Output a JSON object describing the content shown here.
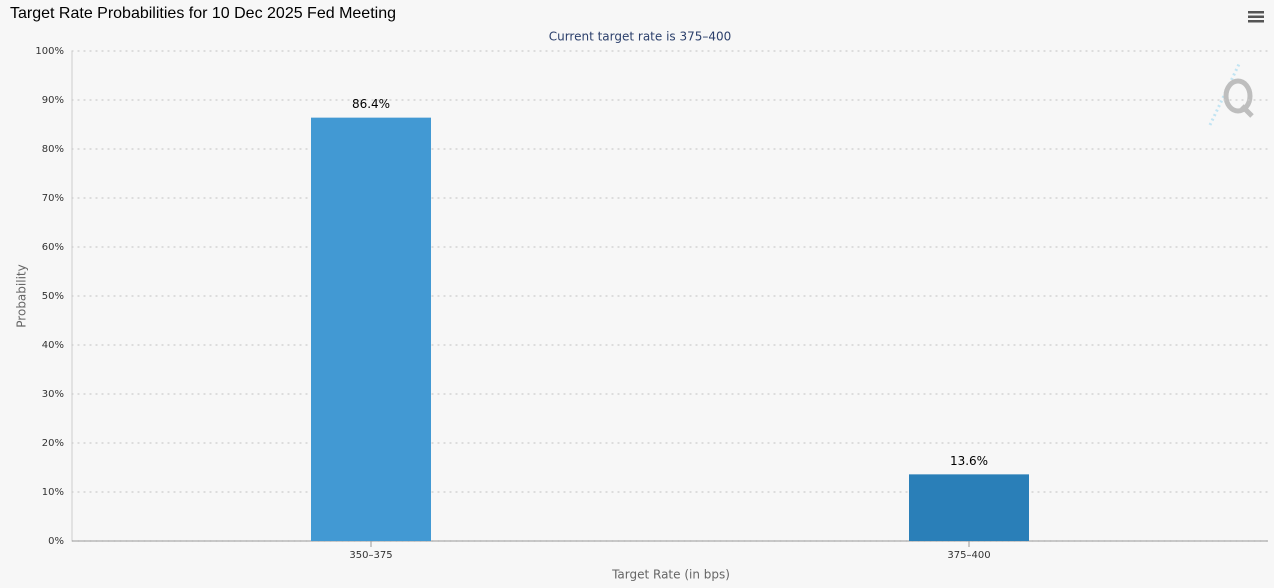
{
  "chart_data": {
    "type": "bar",
    "title": "Target Rate Probabilities for 10 Dec 2025 Fed Meeting",
    "subtitle": "Current target rate is 375–400",
    "x_label": "Target Rate (in bps)",
    "y_label": "Probability",
    "categories": [
      "350–375",
      "375–400"
    ],
    "values": [
      86.4,
      13.6
    ],
    "value_labels": [
      "86.4%",
      "13.6%"
    ],
    "colors": [
      "#4299d3",
      "#2a7fb8"
    ],
    "ylim": [
      0,
      100
    ],
    "yticks": [
      {
        "value": 0,
        "label": "0%"
      },
      {
        "value": 10,
        "label": "10%"
      },
      {
        "value": 20,
        "label": "20%"
      },
      {
        "value": 30,
        "label": "30%"
      },
      {
        "value": 40,
        "label": "40%"
      },
      {
        "value": 50,
        "label": "50%"
      },
      {
        "value": 60,
        "label": "60%"
      },
      {
        "value": 70,
        "label": "70%"
      },
      {
        "value": 80,
        "label": "80%"
      },
      {
        "value": 90,
        "label": "90%"
      },
      {
        "value": 100,
        "label": "100%"
      }
    ],
    "grid": true
  }
}
